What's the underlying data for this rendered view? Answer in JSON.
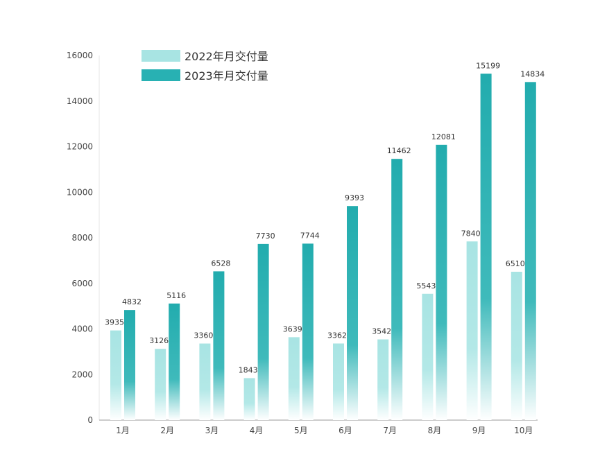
{
  "chart_data": {
    "type": "bar",
    "title": "",
    "xlabel": "",
    "ylabel": "",
    "ylim": [
      0,
      16000
    ],
    "yticks": [
      0,
      2000,
      4000,
      6000,
      8000,
      10000,
      12000,
      14000,
      16000
    ],
    "categories": [
      "1月",
      "2月",
      "3月",
      "4月",
      "5月",
      "6月",
      "7月",
      "8月",
      "9月",
      "10月"
    ],
    "series": [
      {
        "name": "2022年月交付量",
        "color": "#a8e4e3",
        "values": [
          3935,
          3126,
          3360,
          1843,
          3639,
          3362,
          3542,
          5543,
          7840,
          6510
        ]
      },
      {
        "name": "2023年月交付量",
        "color": "#28b1b3",
        "values": [
          4832,
          5116,
          6528,
          7730,
          7744,
          9393,
          11462,
          12081,
          15199,
          14834
        ]
      }
    ],
    "legend": "top-left",
    "grid": false
  }
}
